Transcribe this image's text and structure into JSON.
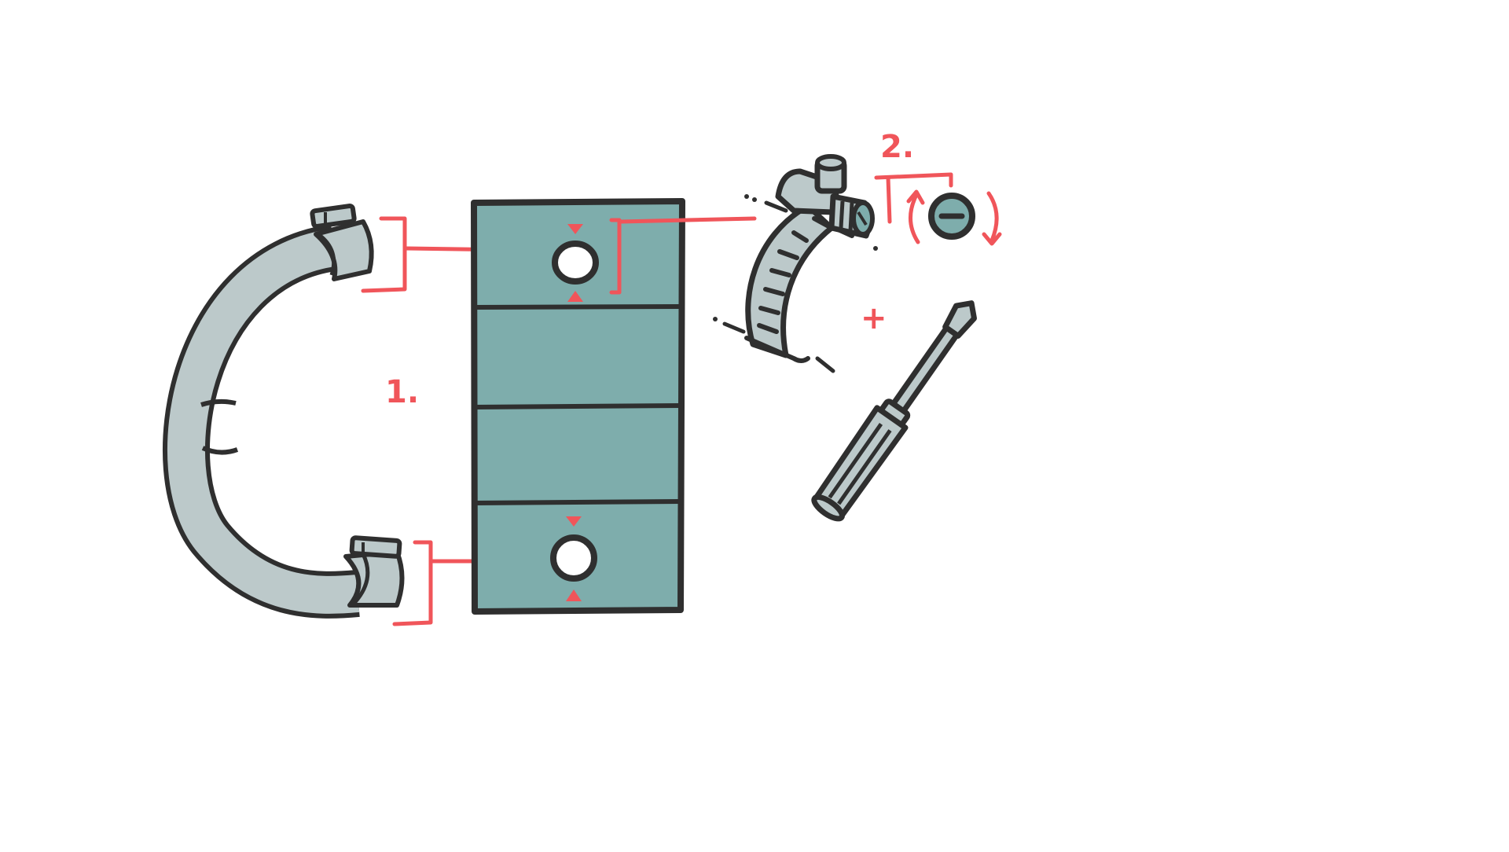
{
  "diagram": {
    "steps": [
      {
        "label": "1."
      },
      {
        "label": "2."
      }
    ],
    "plus_symbol": "+",
    "colors": {
      "outline": "#2f2f2f",
      "panel": "#7eadac",
      "hose": "#bcc9ca",
      "accent": "#f0555a",
      "background": "#ffffff"
    },
    "icons": {
      "hose": "curved-hose-icon",
      "radiator": "radiator-panel-icon",
      "clamp": "hose-clamp-icon",
      "screw_head": "slotted-screw-head-icon",
      "screwdriver": "flathead-screwdriver-icon"
    }
  }
}
